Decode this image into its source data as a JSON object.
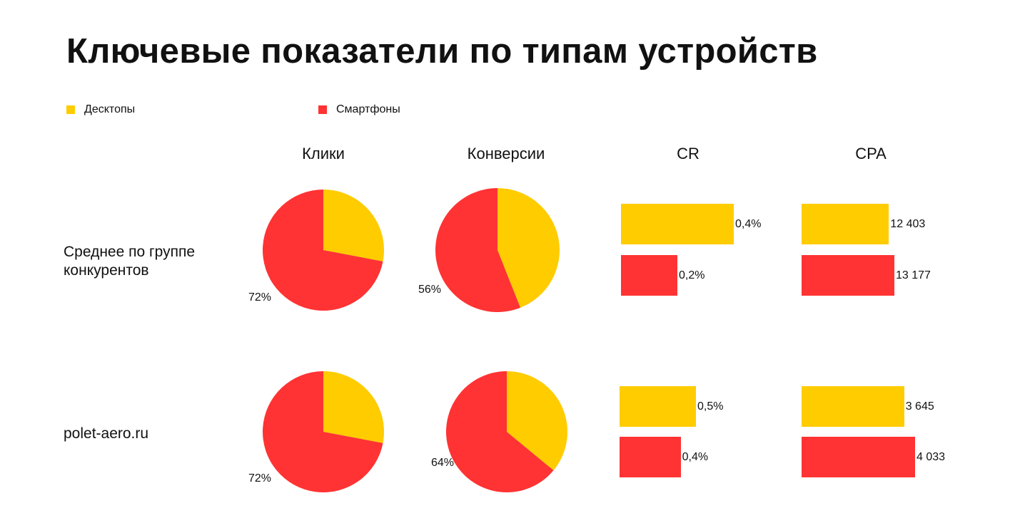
{
  "title": "Ключевые показатели по типам устройств",
  "legend": [
    {
      "label": "Десктопы",
      "color": "#FFCC00"
    },
    {
      "label": "Смартфоны",
      "color": "#FF3333"
    }
  ],
  "columns": [
    "Клики",
    "Конверсии",
    "CR",
    "CPA"
  ],
  "rows": [
    {
      "label_line1": "Среднее по группе",
      "label_line2": "конкурентов"
    },
    {
      "label_line1": "polet-aero.ru",
      "label_line2": ""
    }
  ],
  "chart_data": [
    {
      "type": "pie",
      "title": "Клики",
      "row": "Среднее по группе конкурентов",
      "categories": [
        "Десктопы",
        "Смартфоны"
      ],
      "values": [
        28,
        72
      ],
      "data_label": "72%"
    },
    {
      "type": "pie",
      "title": "Конверсии",
      "row": "Среднее по группе конкурентов",
      "categories": [
        "Десктопы",
        "Смартфоны"
      ],
      "values": [
        44,
        56
      ],
      "data_label": "56%"
    },
    {
      "type": "bar",
      "title": "CR",
      "row": "Среднее по группе конкурентов",
      "categories": [
        "Десктопы",
        "Смартфоны"
      ],
      "values": [
        0.4,
        0.2
      ],
      "data_labels": [
        "0,4%",
        "0,2%"
      ]
    },
    {
      "type": "bar",
      "title": "CPA",
      "row": "Среднее по группе конкурентов",
      "categories": [
        "Десктопы",
        "Смартфоны"
      ],
      "values": [
        12403,
        13177
      ],
      "data_labels": [
        "12 403",
        "13 177"
      ]
    },
    {
      "type": "pie",
      "title": "Клики",
      "row": "polet-aero.ru",
      "categories": [
        "Десктопы",
        "Смартфоны"
      ],
      "values": [
        28,
        72
      ],
      "data_label": "72%"
    },
    {
      "type": "pie",
      "title": "Конверсии",
      "row": "polet-aero.ru",
      "categories": [
        "Десктопы",
        "Смартфоны"
      ],
      "values": [
        36,
        64
      ],
      "data_label": "64%"
    },
    {
      "type": "bar",
      "title": "CR",
      "row": "polet-aero.ru",
      "categories": [
        "Десктопы",
        "Смартфоны"
      ],
      "values": [
        0.5,
        0.4
      ],
      "data_labels": [
        "0,5%",
        "0,4%"
      ]
    },
    {
      "type": "bar",
      "title": "CPA",
      "row": "polet-aero.ru",
      "categories": [
        "Десктопы",
        "Смартфоны"
      ],
      "values": [
        3645,
        4033
      ],
      "data_labels": [
        "3 645",
        "4 033"
      ]
    }
  ]
}
